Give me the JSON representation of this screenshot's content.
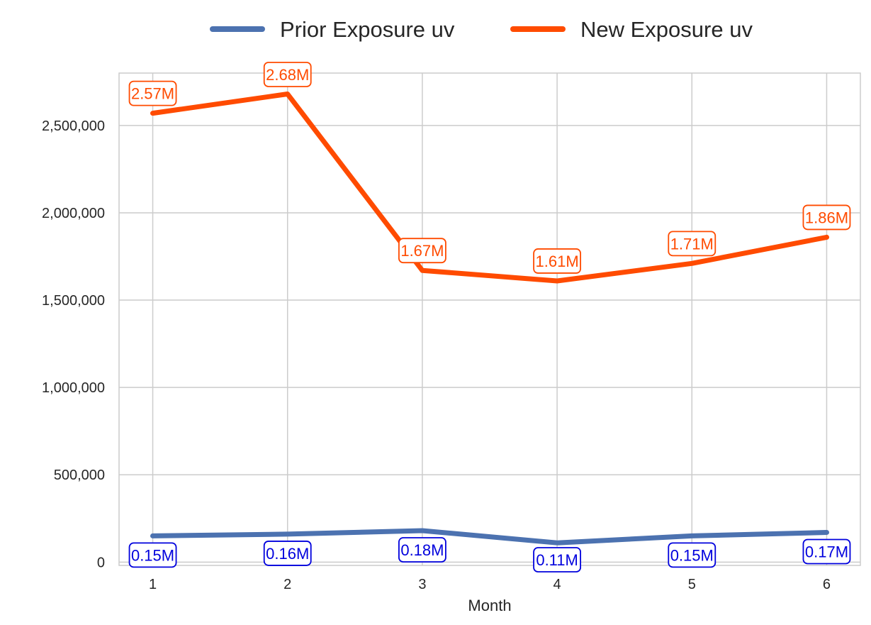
{
  "chart_data": {
    "type": "line",
    "title": "",
    "xlabel": "Month",
    "ylabel": "",
    "x": [
      1,
      2,
      3,
      4,
      5,
      6
    ],
    "x_tick_labels": [
      "1",
      "2",
      "3",
      "4",
      "5",
      "6"
    ],
    "ylim": [
      0,
      2800000
    ],
    "y_ticks": [
      0,
      500000,
      1000000,
      1500000,
      2000000,
      2500000
    ],
    "y_tick_labels": [
      "0",
      "500,000",
      "1,000,000",
      "1,500,000",
      "2,000,000",
      "2,500,000"
    ],
    "grid": true,
    "legend_position": "top-center",
    "series": [
      {
        "name": "Prior Exposure uv",
        "color": "#4c72b0",
        "label_color": "#0000dd",
        "values": [
          150000,
          160000,
          180000,
          110000,
          150000,
          170000
        ],
        "labels": [
          "0.15M",
          "0.16M",
          "0.18M",
          "0.11M",
          "0.15M",
          "0.17M"
        ],
        "label_side": "below"
      },
      {
        "name": "New Exposure uv",
        "color": "#ff4b00",
        "label_color": "#ff4b00",
        "values": [
          2570000,
          2680000,
          1670000,
          1610000,
          1710000,
          1860000
        ],
        "labels": [
          "2.57M",
          "2.68M",
          "1.67M",
          "1.61M",
          "1.71M",
          "1.86M"
        ],
        "label_side": "above"
      }
    ]
  }
}
